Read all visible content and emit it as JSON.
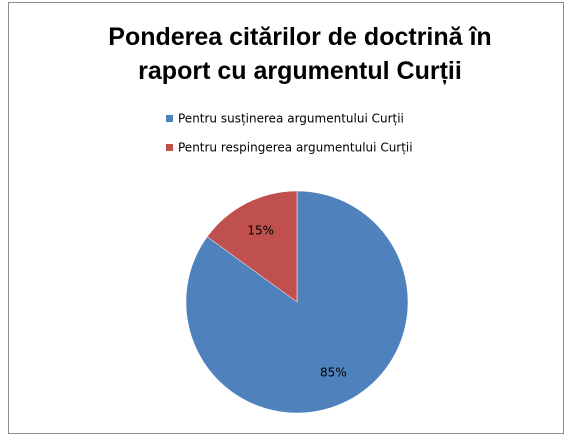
{
  "chart_data": {
    "type": "pie",
    "title": "Ponderea citărilor de doctrină în raport cu argumentul Curții",
    "categories": [
      "Pentru susținerea argumentului Curții",
      "Pentru respingerea argumentului Curții"
    ],
    "values": [
      85,
      15
    ],
    "value_labels": [
      "85%",
      "15%"
    ],
    "colors": [
      "#4f81bd",
      "#c0504d"
    ]
  }
}
